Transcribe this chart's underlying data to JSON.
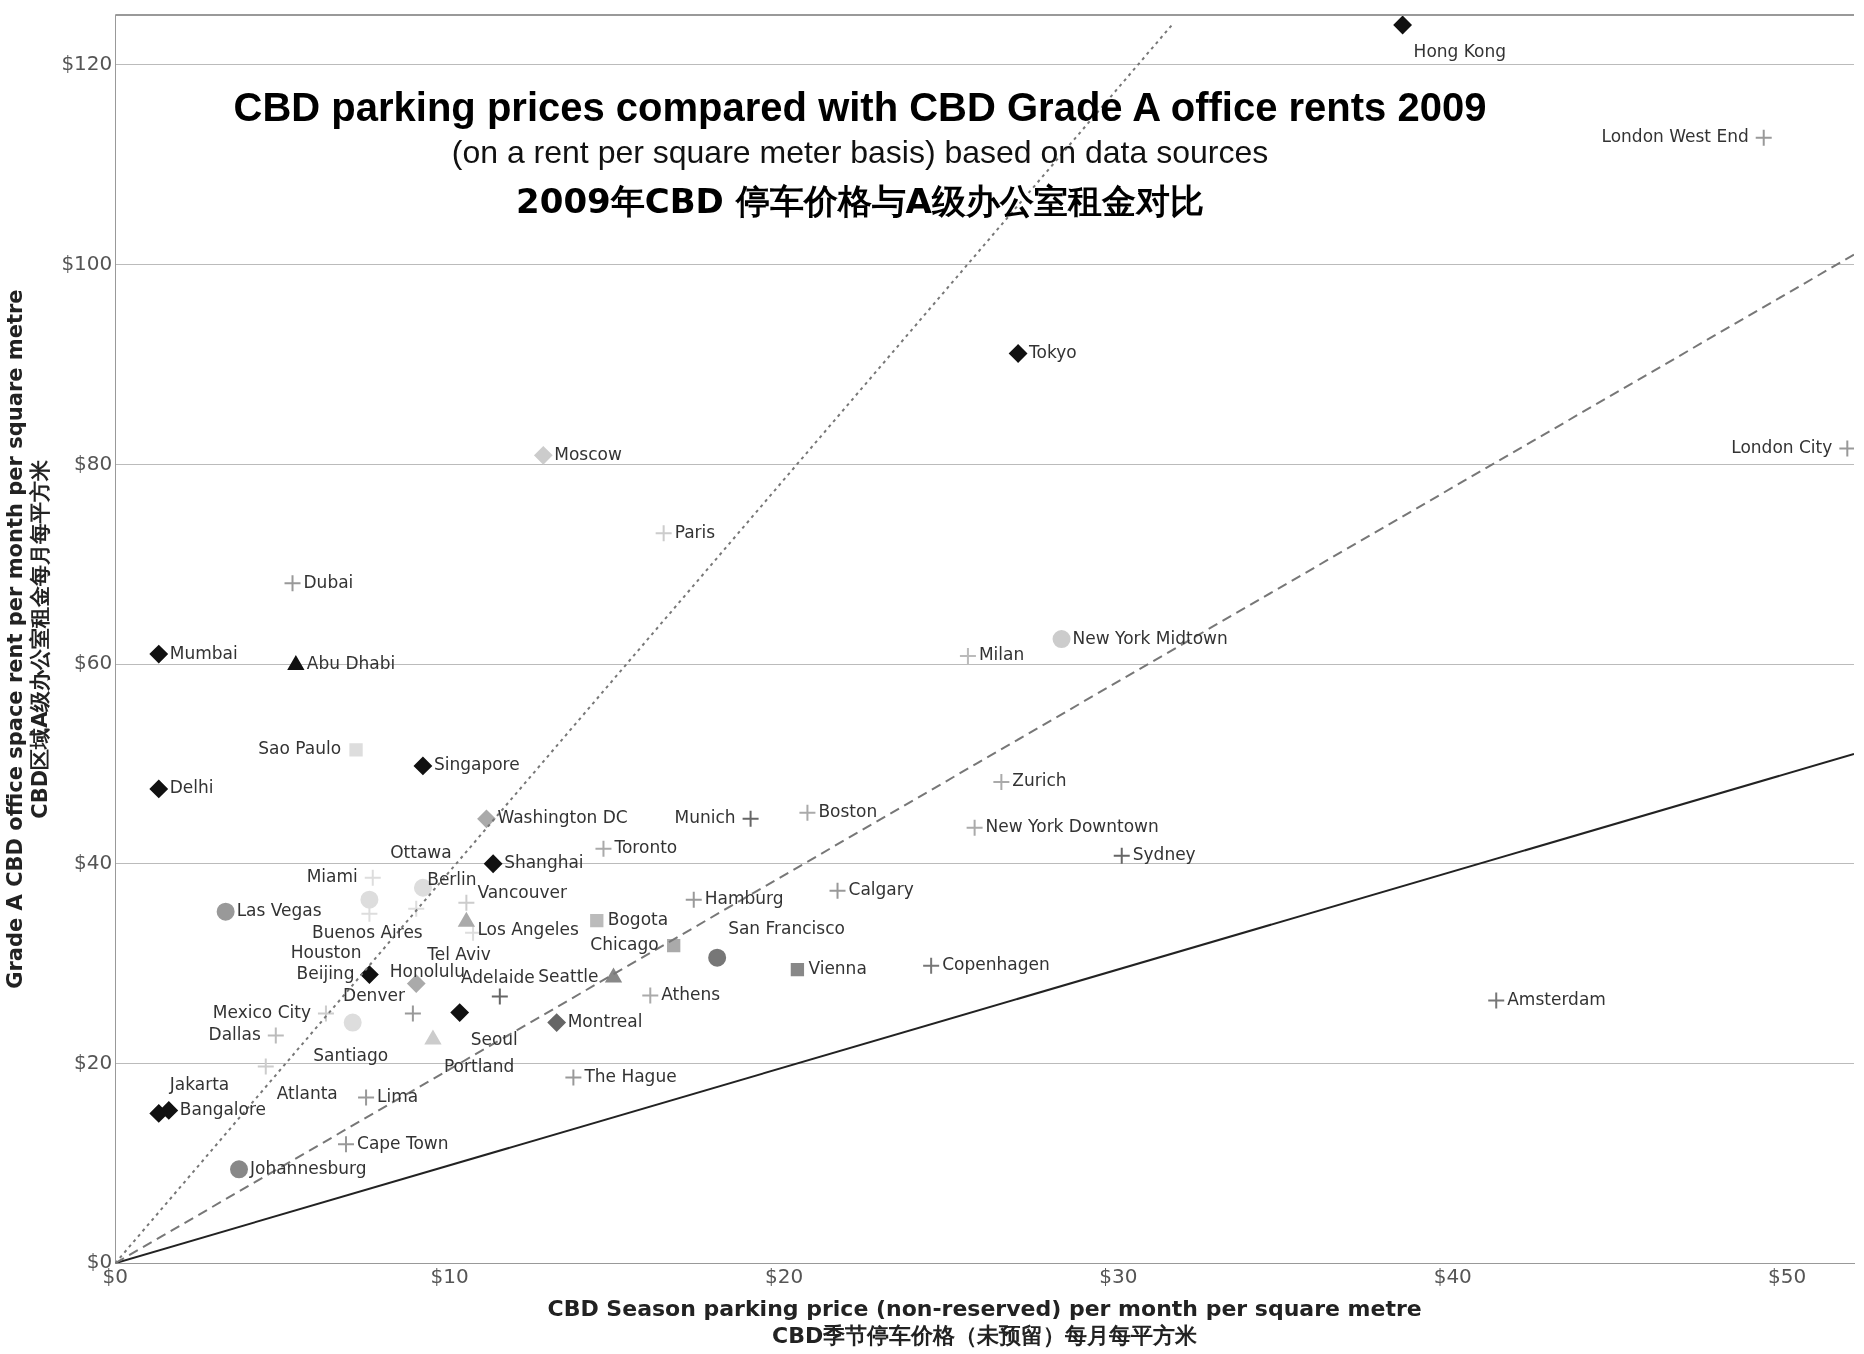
{
  "chart_data": {
    "type": "scatter",
    "title": "CBD parking prices compared with CBD Grade A office rents 2009",
    "subtitle": "(on a rent per square meter basis) based on data sources",
    "xlabel": "CBD Season parking price (non-reserved) per month per square metre\nCBD季节停车价格（未预留）每月每平方米",
    "ylabel": "Grade A CBD office space rent per month per square metre\nCBD区域A级办公室租金每月每平方米",
    "xlim": [
      0,
      52
    ],
    "ylim": [
      0,
      125
    ],
    "xticks": [
      {
        "value": 0,
        "label": "$0"
      },
      {
        "value": 10,
        "label": "$10"
      },
      {
        "value": 20,
        "label": "$20"
      },
      {
        "value": 30,
        "label": "$30"
      },
      {
        "value": 40,
        "label": "$40"
      },
      {
        "value": 50,
        "label": "$50"
      }
    ],
    "yticks": [
      {
        "value": 0,
        "label": "$0"
      },
      {
        "value": 20,
        "label": "$20"
      },
      {
        "value": 40,
        "label": "$40"
      },
      {
        "value": 60,
        "label": "$60"
      },
      {
        "value": 80,
        "label": "$80"
      },
      {
        "value": 100,
        "label": "$100"
      },
      {
        "value": 120,
        "label": "$120"
      }
    ],
    "grid": "y",
    "legend": false,
    "series": [
      {
        "type": "line",
        "line_style": "dotted",
        "color": "#777777",
        "marker": "none",
        "x": [
          0,
          31.6
        ],
        "values": [
          0,
          124
        ]
      },
      {
        "type": "line",
        "line_style": "dashed",
        "color": "#777777",
        "marker": "none",
        "x": [
          0,
          52
        ],
        "values": [
          0,
          101
        ]
      },
      {
        "type": "line",
        "line_style": "solid",
        "color": "#222222",
        "marker": "none",
        "x": [
          0,
          52
        ],
        "values": [
          0,
          51
        ]
      },
      {
        "marker": "diamond",
        "x": [
          38.5,
          27,
          1.3,
          9.2,
          1.3,
          11.3,
          7.6,
          10.3,
          1.6,
          1.3,
          12.8,
          11.1,
          9.0,
          13.2
        ],
        "values": [
          124,
          91.1,
          61,
          49.8,
          47.5,
          40,
          28.9,
          25.1,
          15.3,
          15.0,
          80.9,
          44.5,
          28.0,
          24.1
        ],
        "colors": [
          "#111111",
          "#111111",
          "#111111",
          "#111111",
          "#111111",
          "#111111",
          "#111111",
          "#111111",
          "#111111",
          "#111111",
          "#cccccc",
          "#aaaaaa",
          "#aaaaaa",
          "#666666"
        ]
      },
      {
        "marker": "circle",
        "x": [
          28.3,
          3.3,
          18.0,
          3.7,
          7.1,
          7.6,
          9.2
        ],
        "values": [
          62.5,
          35.2,
          30.6,
          9.4,
          24.1,
          36.4,
          37.6
        ],
        "colors": [
          "#cccccc",
          "#999999",
          "#777777",
          "#888888",
          "#dddddd",
          "#dddddd",
          "#dddddd"
        ]
      },
      {
        "marker": "triangle",
        "x": [
          5.4,
          10.5,
          14.9,
          9.5
        ],
        "values": [
          59.9,
          34.2,
          28.6,
          22.4
        ],
        "colors": [
          "#111111",
          "#aaaaaa",
          "#888888",
          "#cccccc"
        ]
      },
      {
        "marker": "square",
        "x": [
          7.2,
          16.7,
          20.4,
          14.4
        ],
        "values": [
          51.4,
          31.8,
          29.4,
          34.3
        ],
        "colors": [
          "#dddddd",
          "#aaaaaa",
          "#888888",
          "#bbbbbb"
        ]
      },
      {
        "marker": "cross",
        "x": [
          5.3,
          16.4,
          25.5,
          20.7,
          25.7,
          17.3,
          16.0,
          13.7,
          10.5
        ],
        "values": [
          68.1,
          73.1,
          60.8,
          45.1,
          43.6,
          36.4,
          26.8,
          18.6,
          36.1
        ],
        "colors": [
          "#999999",
          "#cccccc",
          "#bbbbbb",
          "#aaaaaa",
          "#aaaaaa",
          "#999999",
          "#aaaaaa",
          "#999999",
          "#cccccc"
        ]
      },
      {
        "marker": "cross",
        "x": [
          49.3,
          51.8,
          26.5,
          19.0,
          14.6,
          30.1,
          21.6,
          24.4,
          41.3,
          11.5,
          8.9,
          7.5,
          6.9,
          4.8,
          4.5,
          6.3,
          7.7,
          7.6,
          9.0,
          10.7
        ],
        "values": [
          112.7,
          81.6,
          48.2,
          44.5,
          41.5,
          40.8,
          37.3,
          29.8,
          26.3,
          26.7,
          25.0,
          16.6,
          11.9,
          22.8,
          19.7,
          25.0,
          38.6,
          35.0,
          35.5,
          33.1
        ],
        "colors": [
          "#999999",
          "#999999",
          "#aaaaaa",
          "#666666",
          "#aaaaaa",
          "#666666",
          "#999999",
          "#777777",
          "#777777",
          "#666666",
          "#999999",
          "#999999",
          "#999999",
          "#bbbbbb",
          "#cccccc",
          "#cccccc",
          "#dddddd",
          "#dddddd",
          "#dddddd",
          "#dddddd"
        ]
      }
    ],
    "annotations": [
      "2009年CBD 停车价格与A级办公室租金对比",
      {
        "text": "Hong Kong",
        "x": 38.5,
        "y": 124
      },
      {
        "text": "Tokyo",
        "x": 27,
        "y": 91.1
      },
      {
        "text": "Mumbai",
        "x": 1.3,
        "y": 61
      },
      {
        "text": "Singapore",
        "x": 9.2,
        "y": 49.8
      },
      {
        "text": "Delhi",
        "x": 1.3,
        "y": 47.5
      },
      {
        "text": "Shanghai",
        "x": 11.3,
        "y": 40
      },
      {
        "text": "Beijing",
        "x": 7.6,
        "y": 28.9
      },
      {
        "text": "Seoul",
        "x": 10.3,
        "y": 25.1
      },
      {
        "text": "Bangalore",
        "x": 1.6,
        "y": 15.3
      },
      {
        "text": "Jakarta",
        "x": 1.3,
        "y": 15.0
      },
      {
        "text": "Moscow",
        "x": 12.8,
        "y": 80.9
      },
      {
        "text": "Washington DC",
        "x": 11.1,
        "y": 44.5
      },
      {
        "text": "Tel Aviv",
        "x": 9.0,
        "y": 28.0
      },
      {
        "text": "Montreal",
        "x": 13.2,
        "y": 24.1
      },
      {
        "text": "New York Midtown",
        "x": 28.3,
        "y": 62.5
      },
      {
        "text": "Las Vegas",
        "x": 3.3,
        "y": 35.2
      },
      {
        "text": "San Francisco",
        "x": 18.0,
        "y": 30.6
      },
      {
        "text": "Johannesburg",
        "x": 3.7,
        "y": 9.4
      },
      {
        "text": "Santiago",
        "x": 7.1,
        "y": 24.1
      },
      {
        "text": "Buenos Aires",
        "x": 7.6,
        "y": 36.4
      },
      {
        "text": "Ottawa",
        "x": 9.2,
        "y": 37.6
      },
      {
        "text": "Abu Dhabi",
        "x": 5.4,
        "y": 59.9
      },
      {
        "text": "Vancouver",
        "x": 10.5,
        "y": 34.2
      },
      {
        "text": "Seattle",
        "x": 14.9,
        "y": 28.6
      },
      {
        "text": "Portland",
        "x": 9.5,
        "y": 22.4
      },
      {
        "text": "Sao Paulo",
        "x": 7.2,
        "y": 51.4
      },
      {
        "text": "Chicago",
        "x": 16.7,
        "y": 31.8
      },
      {
        "text": "Vienna",
        "x": 20.4,
        "y": 29.4
      },
      {
        "text": "Bogota",
        "x": 14.4,
        "y": 34.3
      },
      {
        "text": "Dubai",
        "x": 5.3,
        "y": 68.1
      },
      {
        "text": "Paris",
        "x": 16.4,
        "y": 73.1
      },
      {
        "text": "Milan",
        "x": 25.5,
        "y": 60.8
      },
      {
        "text": "Boston",
        "x": 20.7,
        "y": 45.1
      },
      {
        "text": "New York Downtown",
        "x": 25.7,
        "y": 43.6
      },
      {
        "text": "Hamburg",
        "x": 17.3,
        "y": 36.4
      },
      {
        "text": "Athens",
        "x": 16.0,
        "y": 26.8
      },
      {
        "text": "The Hague",
        "x": 13.7,
        "y": 18.6
      },
      {
        "text": "Los Angeles",
        "x": 10.5,
        "y": 36.1
      },
      {
        "text": "London West End",
        "x": 49.3,
        "y": 112.7
      },
      {
        "text": "London City",
        "x": 51.8,
        "y": 81.6
      },
      {
        "text": "Zurich",
        "x": 26.5,
        "y": 48.2
      },
      {
        "text": "Munich",
        "x": 19.0,
        "y": 44.5
      },
      {
        "text": "Toronto",
        "x": 14.6,
        "y": 41.5
      },
      {
        "text": "Sydney",
        "x": 30.1,
        "y": 40.8
      },
      {
        "text": "Calgary",
        "x": 21.6,
        "y": 37.3
      },
      {
        "text": "Copenhagen",
        "x": 24.4,
        "y": 29.8
      },
      {
        "text": "Amsterdam",
        "x": 41.3,
        "y": 26.3
      },
      {
        "text": "Adelaide",
        "x": 11.5,
        "y": 26.7
      },
      {
        "text": "Denver",
        "x": 8.9,
        "y": 25.0
      },
      {
        "text": "Lima",
        "x": 7.5,
        "y": 16.6
      },
      {
        "text": "Cape Town",
        "x": 6.9,
        "y": 11.9
      },
      {
        "text": "Dallas",
        "x": 4.8,
        "y": 22.8
      },
      {
        "text": "Atlanta",
        "x": 4.5,
        "y": 19.7
      },
      {
        "text": "Mexico City",
        "x": 6.3,
        "y": 25.0
      },
      {
        "text": "Miami",
        "x": 7.7,
        "y": 38.6
      },
      {
        "text": "Houston",
        "x": 7.6,
        "y": 35.0
      },
      {
        "text": "Berlin",
        "x": 9.0,
        "y": 35.5
      },
      {
        "text": "Honolulu",
        "x": 10.7,
        "y": 33.1
      }
    ]
  }
}
